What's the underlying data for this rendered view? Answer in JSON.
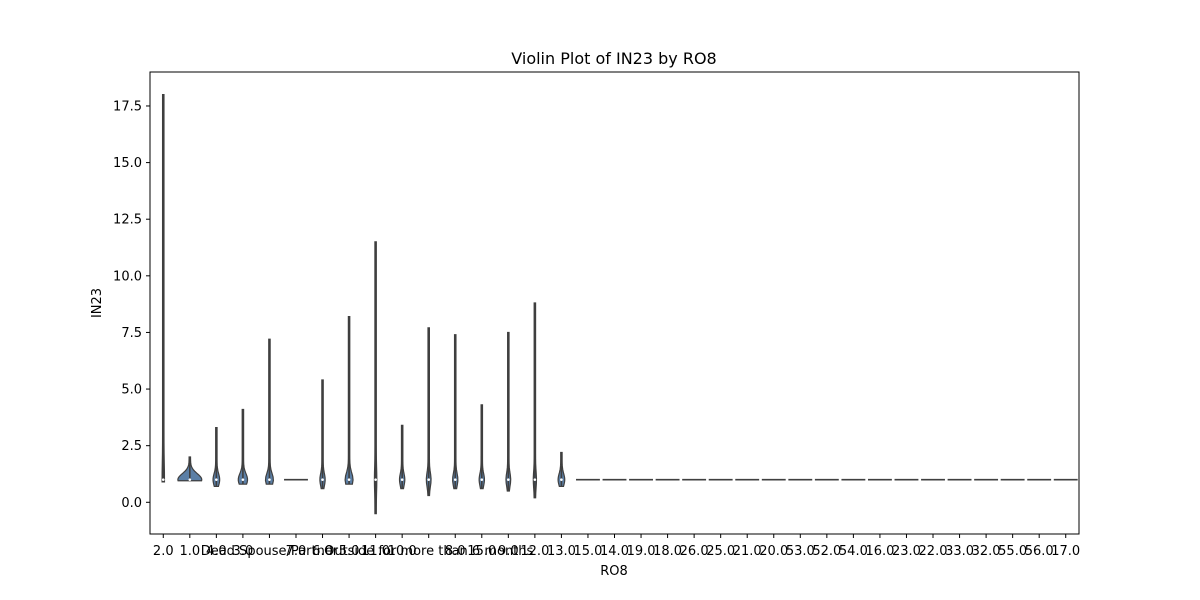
{
  "chart_data": {
    "type": "violin",
    "title": "Violin Plot of IN23 by RO8",
    "xlabel": "RO8",
    "ylabel": "IN23",
    "ylim": [
      -1.4,
      19.0
    ],
    "yticks": [
      0.0,
      2.5,
      5.0,
      7.5,
      10.0,
      12.5,
      15.0,
      17.5
    ],
    "ytick_labels": [
      "0.0",
      "2.5",
      "5.0",
      "7.5",
      "10.0",
      "12.5",
      "15.0",
      "17.5"
    ],
    "grid": false,
    "colors": {
      "outline": "#3f3f3f",
      "fill": "#5b7fa6"
    },
    "categories": [
      "2.0",
      "1.0",
      "4.0",
      "3.0",
      "Dead Spouse/Partner",
      "7.0",
      "6.0",
      "5.0",
      "11.0",
      "10.0",
      "Outside for more than 6 months",
      "8.0",
      "15.0",
      "9.0",
      "12.0",
      "13.0",
      "15.0",
      "14.0",
      "19.0",
      "18.0",
      "26.0",
      "25.0",
      "21.0",
      "20.0",
      "53.0",
      "52.0",
      "54.0",
      "16.0",
      "23.0",
      "22.0",
      "33.0",
      "32.0",
      "55.0",
      "56.0",
      "17.0"
    ],
    "series": [
      {
        "category": "2.0",
        "min": 0.9,
        "max": 18.0,
        "median": 1.0,
        "width": 0.08
      },
      {
        "category": "1.0",
        "min": 0.95,
        "max": 2.0,
        "median": 1.0,
        "width": 0.9
      },
      {
        "category": "4.0",
        "min": 0.7,
        "max": 3.3,
        "median": 1.0,
        "width": 0.25
      },
      {
        "category": "3.0",
        "min": 0.8,
        "max": 4.1,
        "median": 1.0,
        "width": 0.35
      },
      {
        "category": "Dead Spouse/Partner",
        "min": 0.8,
        "max": 7.2,
        "median": 1.0,
        "width": 0.3
      },
      {
        "category": "7.0",
        "min": 1.0,
        "max": 1.0,
        "median": 1.0,
        "width": 0.9
      },
      {
        "category": "6.0",
        "min": 0.6,
        "max": 5.4,
        "median": 1.0,
        "width": 0.2
      },
      {
        "category": "5.0",
        "min": 0.8,
        "max": 8.2,
        "median": 1.0,
        "width": 0.3
      },
      {
        "category": "11.0",
        "min": -0.5,
        "max": 11.5,
        "median": 1.0,
        "width": 0.08
      },
      {
        "category": "10.0",
        "min": 0.6,
        "max": 3.4,
        "median": 1.0,
        "width": 0.2
      },
      {
        "category": "Outside for more than 6 months",
        "min": 0.3,
        "max": 7.7,
        "median": 1.0,
        "width": 0.18
      },
      {
        "category": "8.0",
        "min": 0.6,
        "max": 7.4,
        "median": 1.0,
        "width": 0.2
      },
      {
        "category": "15.0",
        "min": 0.6,
        "max": 4.3,
        "median": 1.0,
        "width": 0.2
      },
      {
        "category": "9.0",
        "min": 0.5,
        "max": 7.5,
        "median": 1.0,
        "width": 0.18
      },
      {
        "category": "12.0",
        "min": 0.2,
        "max": 8.8,
        "median": 1.0,
        "width": 0.12
      },
      {
        "category": "13.0",
        "min": 0.7,
        "max": 2.2,
        "median": 1.0,
        "width": 0.25
      },
      {
        "category": "15.0",
        "min": 1.0,
        "max": 1.0,
        "median": 1.0,
        "width": 0.9
      },
      {
        "category": "14.0",
        "min": 1.0,
        "max": 1.0,
        "median": 1.0,
        "width": 0.9
      },
      {
        "category": "19.0",
        "min": 1.0,
        "max": 1.0,
        "median": 1.0,
        "width": 0.9
      },
      {
        "category": "18.0",
        "min": 1.0,
        "max": 1.0,
        "median": 1.0,
        "width": 0.9
      },
      {
        "category": "26.0",
        "min": 1.0,
        "max": 1.0,
        "median": 1.0,
        "width": 0.9
      },
      {
        "category": "25.0",
        "min": 1.0,
        "max": 1.0,
        "median": 1.0,
        "width": 0.9
      },
      {
        "category": "21.0",
        "min": 1.0,
        "max": 1.0,
        "median": 1.0,
        "width": 0.9
      },
      {
        "category": "20.0",
        "min": 1.0,
        "max": 1.0,
        "median": 1.0,
        "width": 0.9
      },
      {
        "category": "53.0",
        "min": 1.0,
        "max": 1.0,
        "median": 1.0,
        "width": 0.9
      },
      {
        "category": "52.0",
        "min": 1.0,
        "max": 1.0,
        "median": 1.0,
        "width": 0.9
      },
      {
        "category": "54.0",
        "min": 1.0,
        "max": 1.0,
        "median": 1.0,
        "width": 0.9
      },
      {
        "category": "16.0",
        "min": 1.0,
        "max": 1.0,
        "median": 1.0,
        "width": 0.9
      },
      {
        "category": "23.0",
        "min": 1.0,
        "max": 1.0,
        "median": 1.0,
        "width": 0.9
      },
      {
        "category": "22.0",
        "min": 1.0,
        "max": 1.0,
        "median": 1.0,
        "width": 0.9
      },
      {
        "category": "33.0",
        "min": 1.0,
        "max": 1.0,
        "median": 1.0,
        "width": 0.9
      },
      {
        "category": "32.0",
        "min": 1.0,
        "max": 1.0,
        "median": 1.0,
        "width": 0.9
      },
      {
        "category": "55.0",
        "min": 1.0,
        "max": 1.0,
        "median": 1.0,
        "width": 0.9
      },
      {
        "category": "56.0",
        "min": 1.0,
        "max": 1.0,
        "median": 1.0,
        "width": 0.9
      },
      {
        "category": "17.0",
        "min": 1.0,
        "max": 1.0,
        "median": 1.0,
        "width": 0.9
      }
    ]
  }
}
